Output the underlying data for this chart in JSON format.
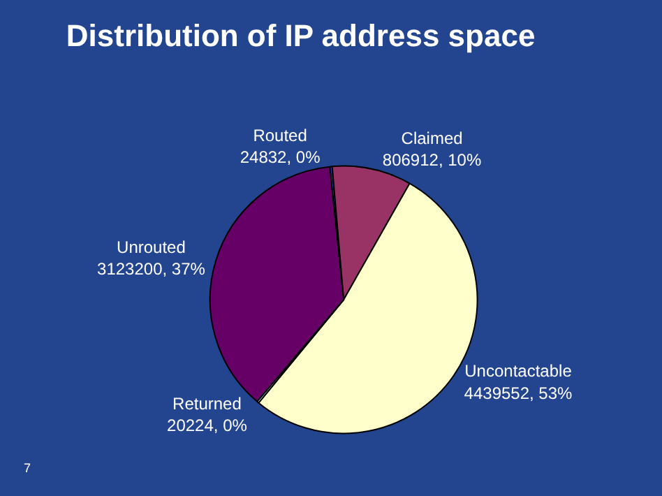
{
  "chart_data": {
    "type": "pie",
    "title": "Distribution of IP address space",
    "categories": [
      "Routed",
      "Claimed",
      "Uncontactable",
      "Returned",
      "Unrouted"
    ],
    "values": [
      24832,
      806912,
      4439552,
      20224,
      3123200
    ],
    "value_labels": [
      "24832, 0%",
      "806912, 10%",
      "4439552, 53%",
      "20224, 0%",
      "3123200, 37%"
    ],
    "colors": [
      "#333399",
      "#993366",
      "#ffffcc",
      "#ccffff",
      "#660066"
    ],
    "legend": false,
    "annotations": [
      "7"
    ]
  }
}
